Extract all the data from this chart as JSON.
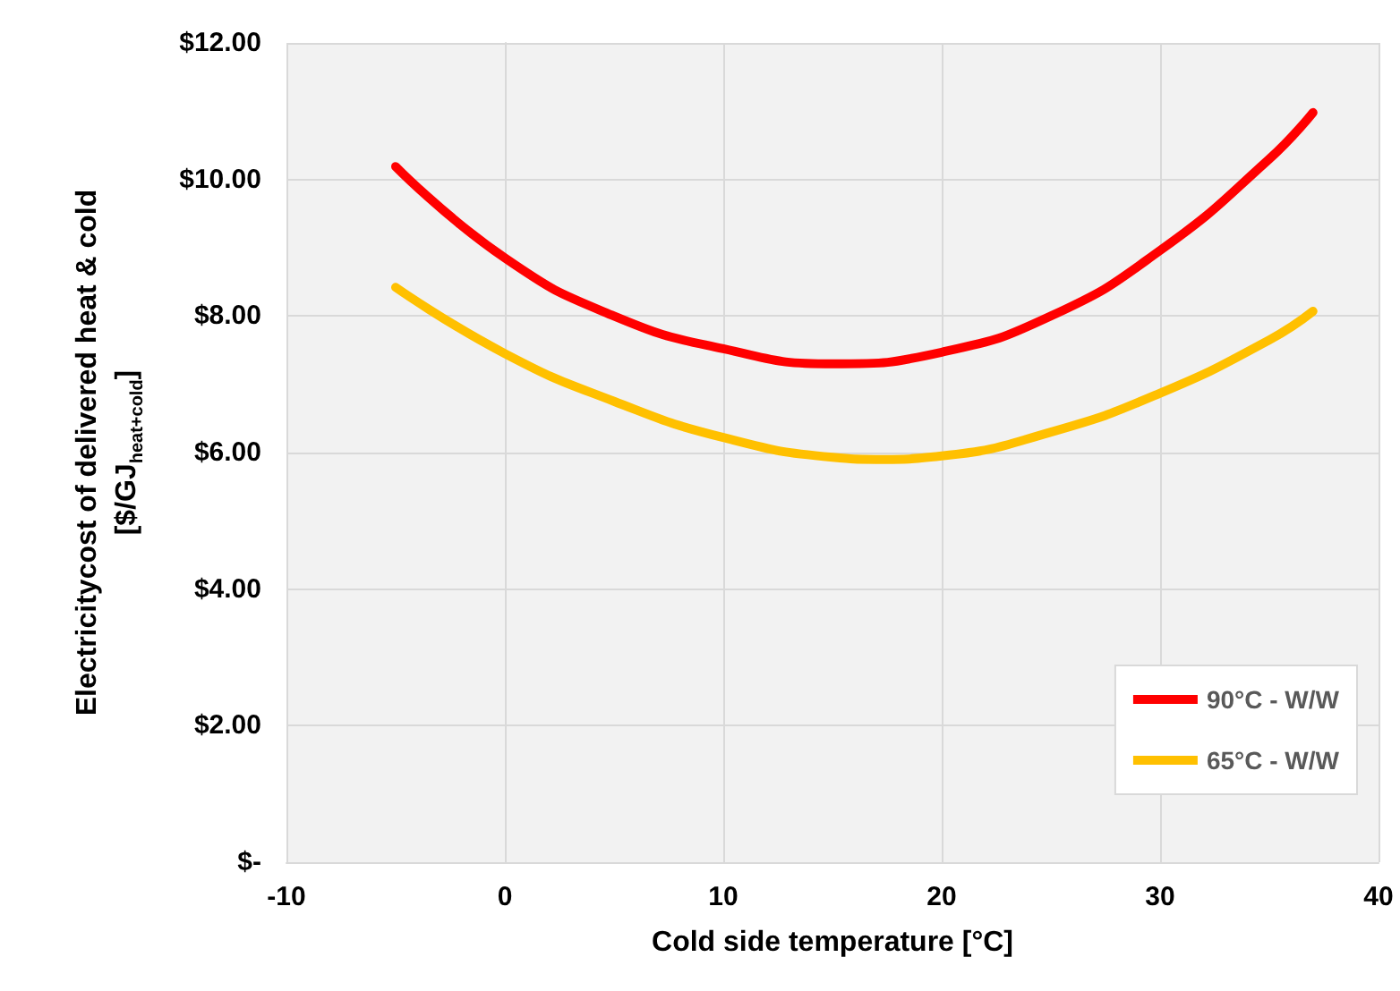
{
  "chart_data": {
    "type": "line",
    "xlabel": "Cold side temperature [°C]",
    "ylabel": "Electricitycost of delivered heat & cold\n[$/GJ$_{heat+cold}$]",
    "xlim": [
      -10,
      40
    ],
    "xticks": [
      -10,
      0,
      10,
      20,
      30,
      40
    ],
    "ylim": [
      0,
      12
    ],
    "yticks": [
      {
        "value": 0,
        "label": "$-"
      },
      {
        "value": 2,
        "label": "$2.00"
      },
      {
        "value": 4,
        "label": "$4.00"
      },
      {
        "value": 6,
        "label": "$6.00"
      },
      {
        "value": 8,
        "label": "$8.00"
      },
      {
        "value": 10,
        "label": "$10.00"
      },
      {
        "value": 12,
        "label": "$12.00"
      }
    ],
    "grid": true,
    "legend": "bottom right",
    "marker": "none",
    "line_style": "solid",
    "series": [
      {
        "name": "90°C - W/W",
        "color": "#ff0000",
        "x": [
          -5,
          0,
          5,
          10,
          15,
          20,
          25,
          30,
          35,
          37
        ],
        "values": [
          10.19,
          8.85,
          8.0,
          7.52,
          7.3,
          7.47,
          8.0,
          8.96,
          10.3,
          10.98
        ]
      },
      {
        "name": "65°C - W/W",
        "color": "#ffc000",
        "x": [
          -5,
          0,
          5,
          10,
          15,
          17,
          20,
          25,
          30,
          35,
          37
        ],
        "values": [
          8.42,
          7.45,
          6.75,
          6.22,
          5.93,
          5.9,
          5.95,
          6.3,
          6.87,
          7.65,
          8.07
        ]
      }
    ]
  }
}
